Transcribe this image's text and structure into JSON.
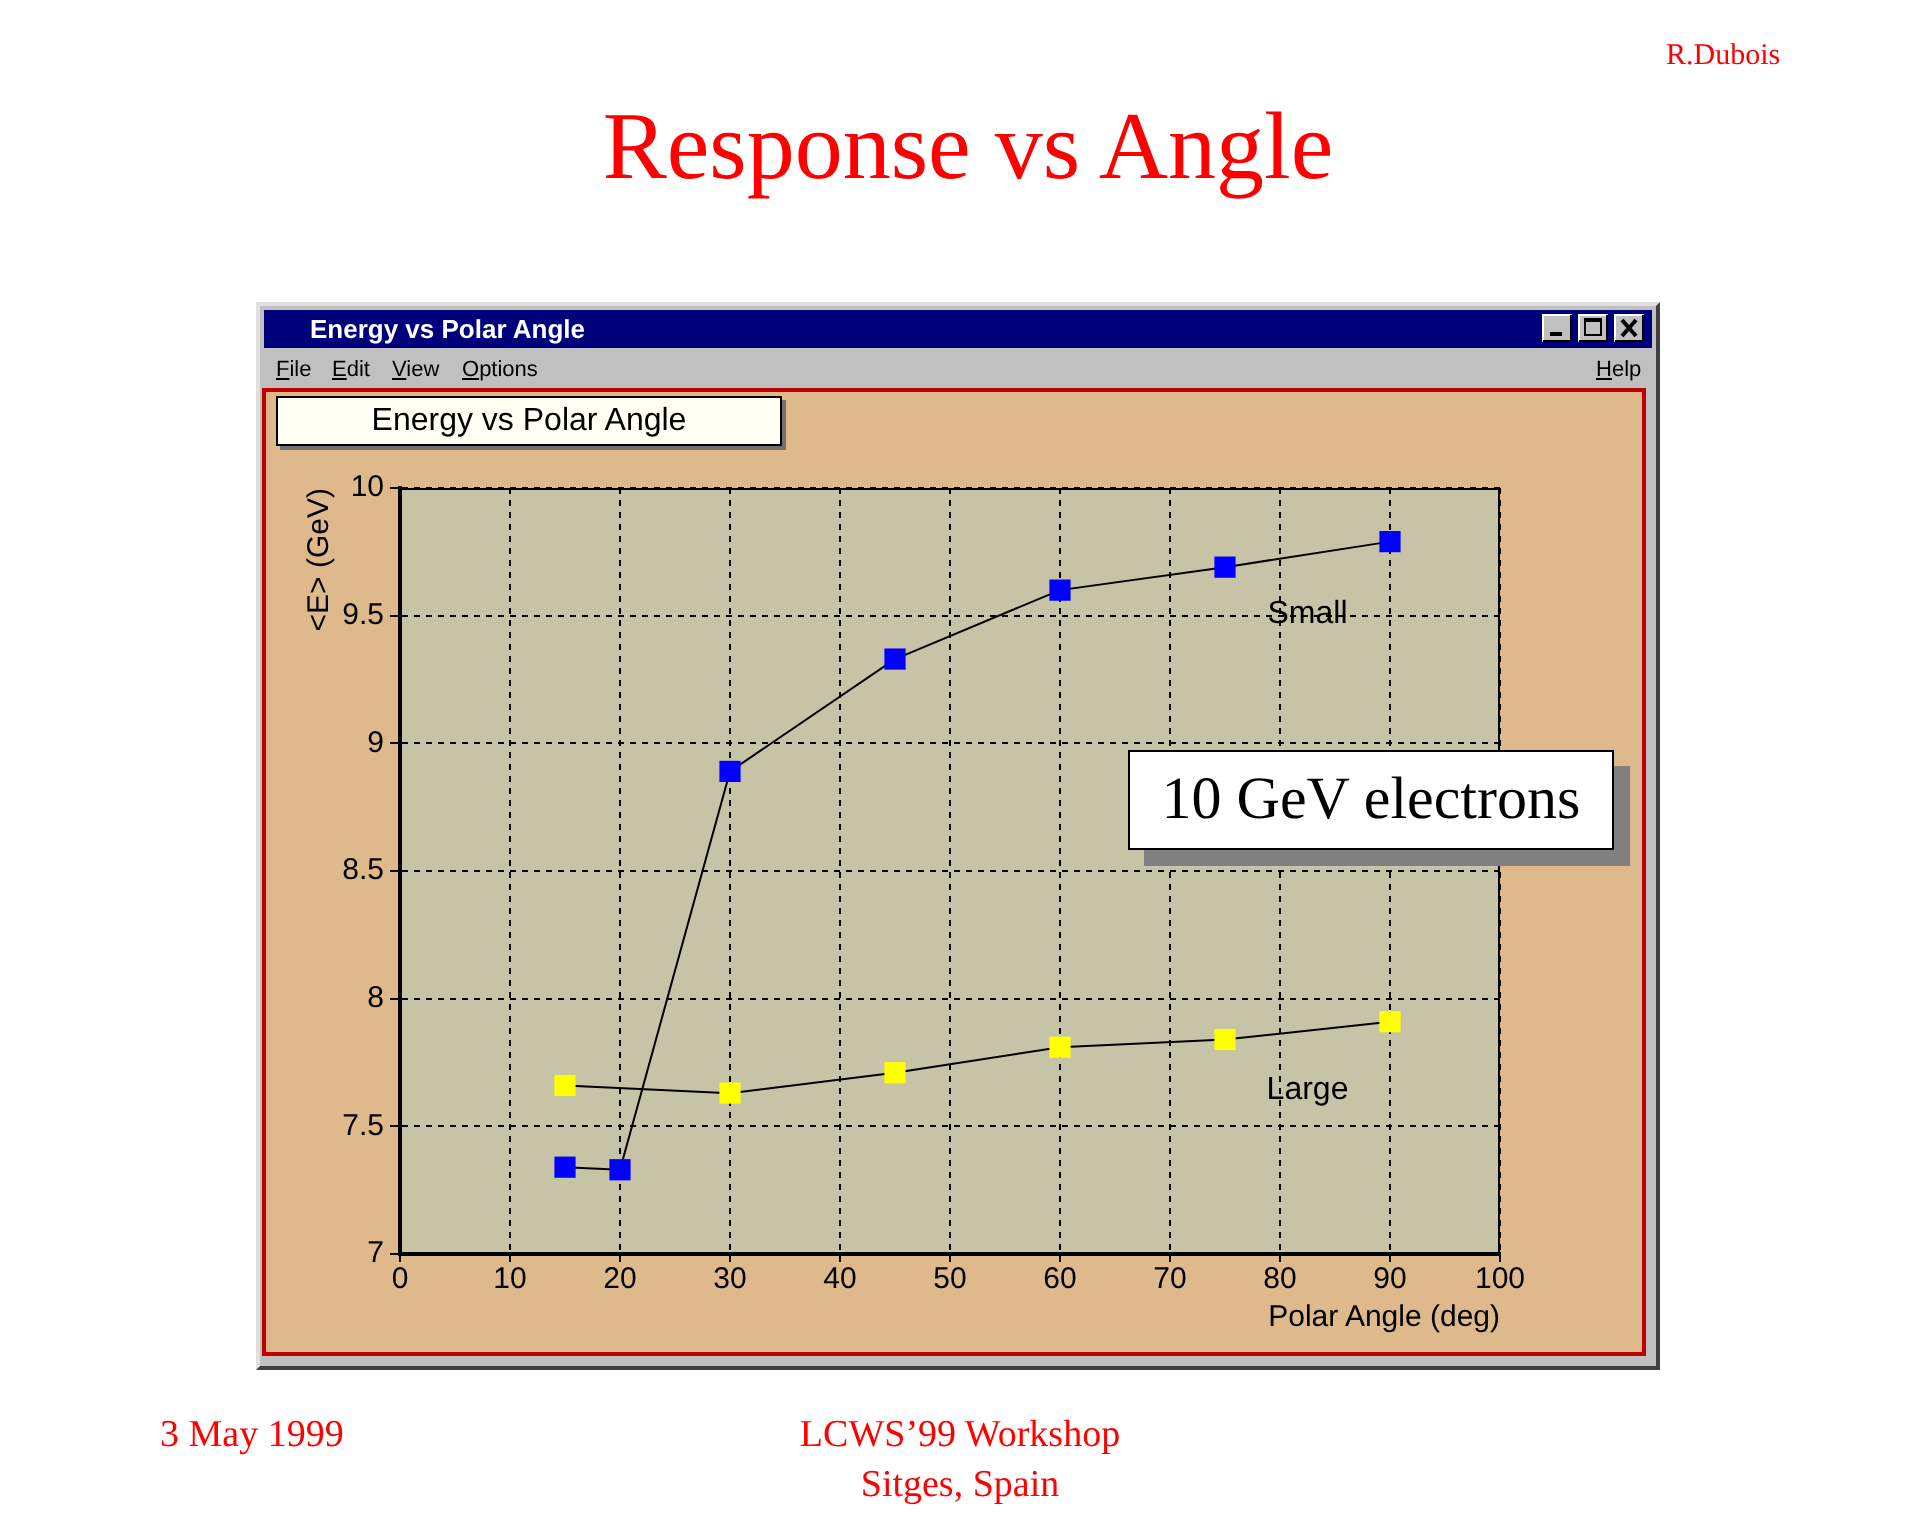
{
  "chart_data": {
    "type": "line",
    "title": "Response vs Angle",
    "subtitle": "Energy vs Polar Angle",
    "xlabel": "Polar Angle (deg)",
    "ylabel": "<E> (GeV)",
    "annotations": [
      "10 GeV electrons",
      "R.Dubois",
      "3 May 1999",
      "LCWS’99 Workshop",
      "Sitges, Spain",
      "Energy vs Polar Angle",
      "File",
      "Edit",
      "View",
      "Options",
      "Help"
    ],
    "series": [
      {
        "name": "Small",
        "color": "#0000ff",
        "x": [
          15,
          20,
          30,
          45,
          60,
          75,
          90
        ],
        "values": [
          7.34,
          7.33,
          8.89,
          9.33,
          9.6,
          9.69,
          9.79
        ]
      },
      {
        "name": "Large",
        "color": "#ffff00",
        "x": [
          15,
          30,
          45,
          60,
          75,
          90
        ],
        "values": [
          7.66,
          7.63,
          7.71,
          7.81,
          7.84,
          7.91
        ]
      }
    ],
    "xlim": [
      0,
      100
    ],
    "xticks": [
      0,
      10,
      20,
      30,
      40,
      50,
      60,
      70,
      80,
      90,
      100
    ],
    "ylim": [
      7,
      10
    ],
    "yticks": [
      7,
      7.5,
      8,
      8.5,
      9,
      9.5,
      10
    ],
    "grid": true,
    "marker": "square",
    "line_style": "solid"
  }
}
